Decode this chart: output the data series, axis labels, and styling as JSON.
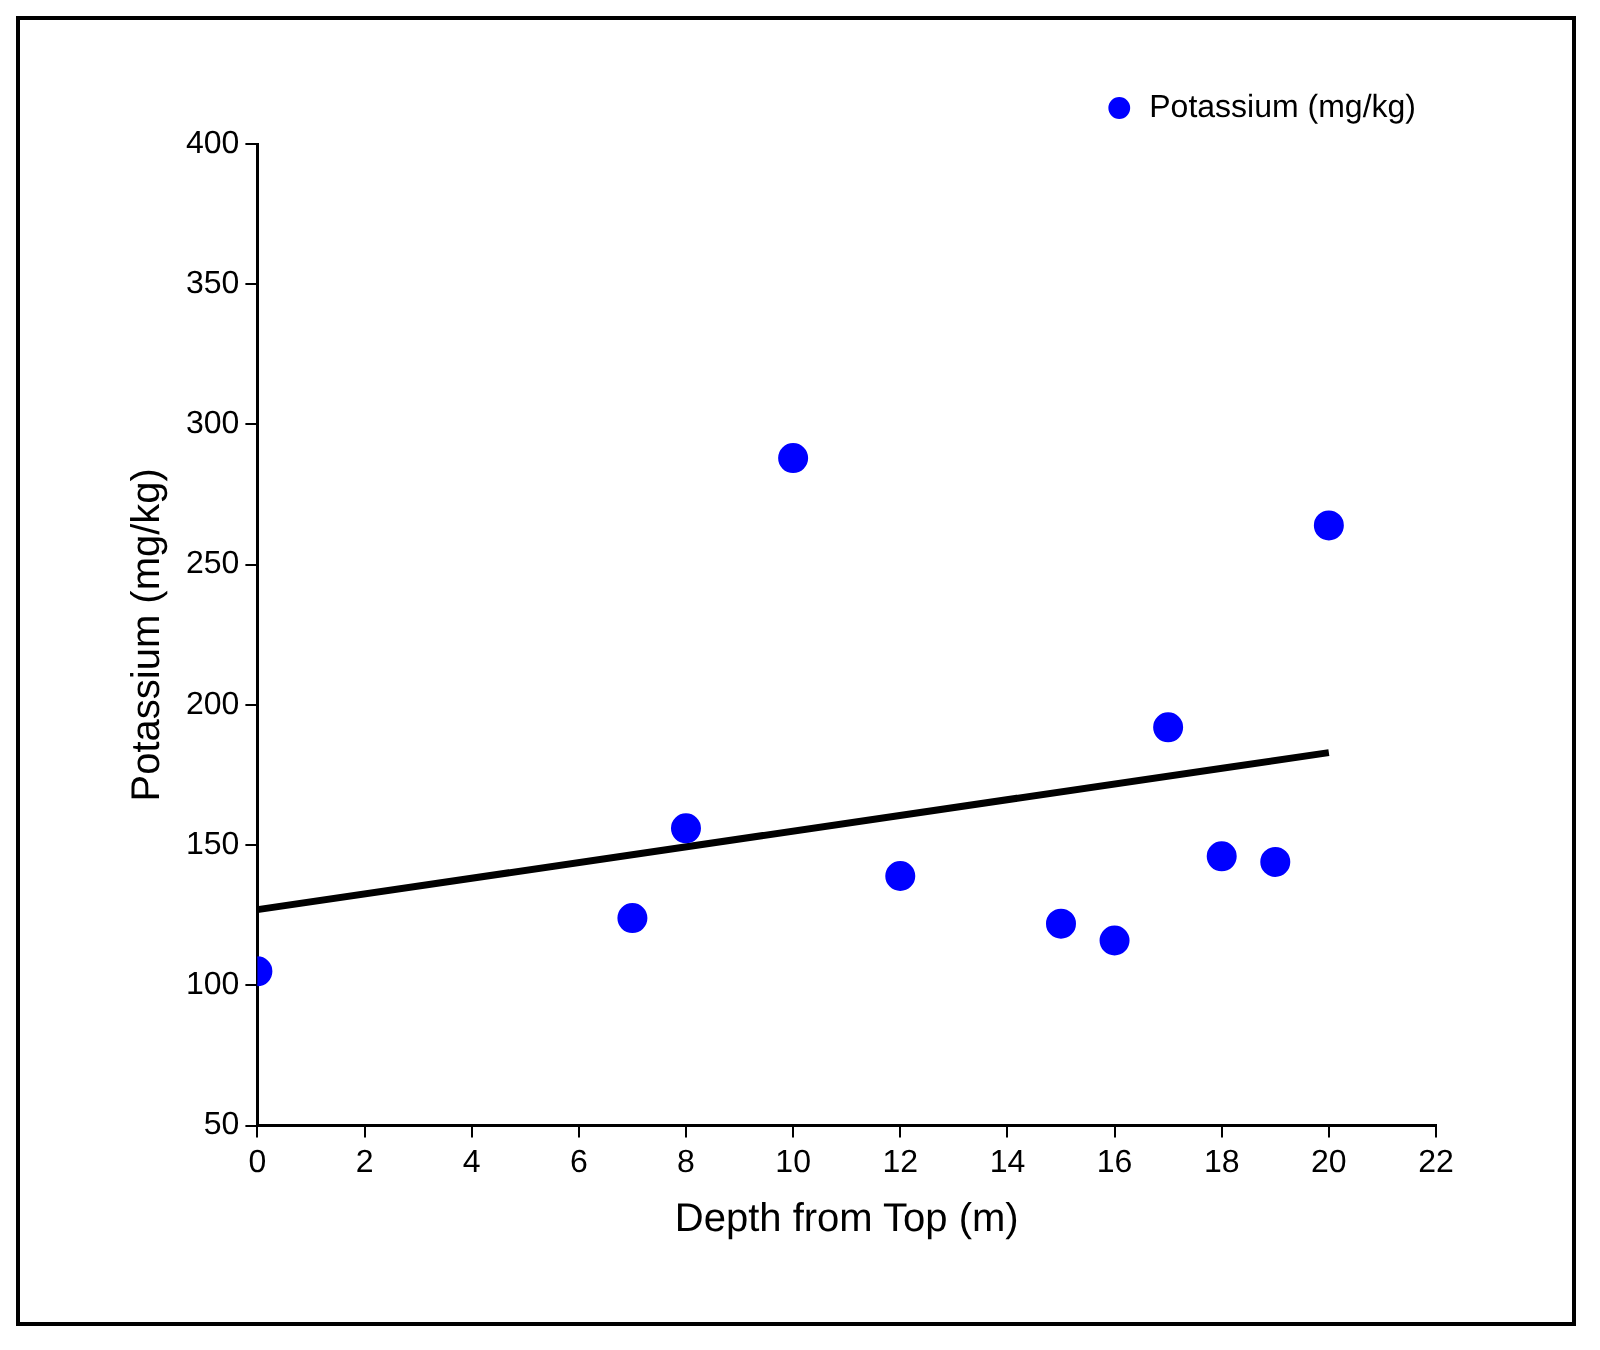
{
  "chart_data": {
    "type": "scatter",
    "xlabel": "Depth from Top (m)",
    "ylabel": "Potassium (mg/kg)",
    "xlim": [
      0,
      22
    ],
    "xticks": [
      0,
      2,
      4,
      6,
      8,
      10,
      12,
      14,
      16,
      18,
      20,
      22
    ],
    "ylim": [
      50,
      400
    ],
    "yticks": [
      50,
      100,
      150,
      200,
      250,
      300,
      350,
      400
    ],
    "legend": "top right",
    "marker": "circle",
    "series": [
      {
        "name": "Potassium (mg/kg)",
        "type": "scatter",
        "color": "#0000ff",
        "x": [
          0,
          7,
          8,
          10,
          12,
          15,
          16,
          17,
          18,
          19,
          20
        ],
        "values": [
          105,
          124,
          156,
          288,
          139,
          122,
          116,
          192,
          146,
          144,
          264
        ]
      },
      {
        "type": "line",
        "color": "#000000",
        "marker": "none",
        "x": [
          0,
          20
        ],
        "values": [
          127,
          183
        ]
      }
    ]
  }
}
